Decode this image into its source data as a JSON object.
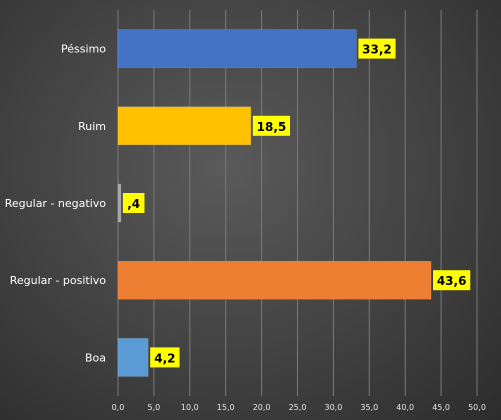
{
  "chart_data": {
    "type": "bar",
    "orientation": "horizontal",
    "categories": [
      "Péssimo",
      "Ruim",
      "Regular - negativo",
      "Regular - positivo",
      "Boa"
    ],
    "values": [
      33.2,
      18.5,
      0.4,
      43.6,
      4.2
    ],
    "value_labels": [
      "33,2",
      "18,5",
      ",4",
      "43,6",
      "4,2"
    ],
    "colors": [
      "#4472c4",
      "#ffc000",
      "#a5a5a5",
      "#ed7d31",
      "#5b9bd5"
    ],
    "label_background": "#ffff00",
    "xlim": [
      0,
      50
    ],
    "x_ticks": [
      "0,0",
      "5,0",
      "10,0",
      "15,0",
      "20,0",
      "25,0",
      "30,0",
      "35,0",
      "40,0",
      "45,0",
      "50,0"
    ],
    "grid": true,
    "title": "",
    "xlabel": "",
    "ylabel": ""
  }
}
